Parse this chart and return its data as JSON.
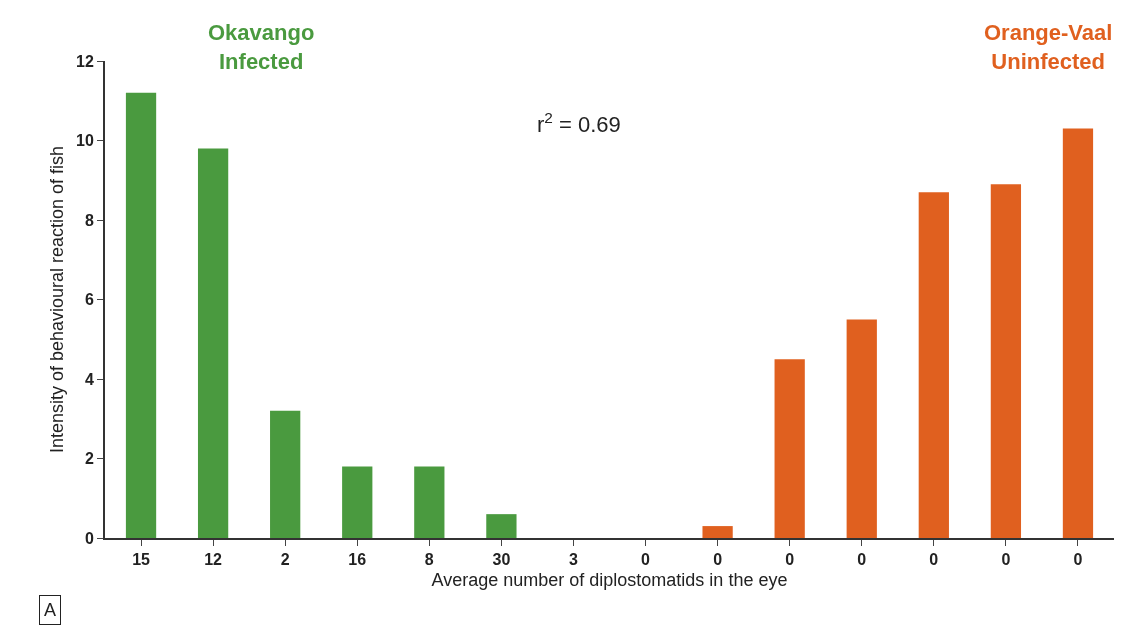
{
  "chart_data": {
    "type": "bar",
    "xlabel": "Average number of diplostomatids in the eye",
    "ylabel": "Intensity of behavioural reaction of fish",
    "categories": [
      "15",
      "12",
      "2",
      "16",
      "8",
      "30",
      "3",
      "0",
      "0",
      "0",
      "0",
      "0",
      "0",
      "0"
    ],
    "values": [
      11.2,
      9.8,
      3.2,
      1.8,
      1.8,
      0.6,
      0,
      0,
      0.3,
      4.5,
      5.5,
      8.7,
      8.9,
      10.3
    ],
    "colors": [
      "#4a9a3f",
      "#4a9a3f",
      "#4a9a3f",
      "#4a9a3f",
      "#4a9a3f",
      "#4a9a3f",
      "#4a9a3f",
      "#4a9a3f",
      "#e0601f",
      "#e0601f",
      "#e0601f",
      "#e0601f",
      "#e0601f",
      "#e0601f"
    ],
    "ylim": [
      0,
      12
    ],
    "yticks": [
      0,
      2,
      4,
      6,
      8,
      10,
      12
    ],
    "annotations": [
      "Okavango\nInfected",
      "Orange-Vaal\nUninfected",
      "r$^{2}$ = 0.69",
      "A"
    ]
  }
}
